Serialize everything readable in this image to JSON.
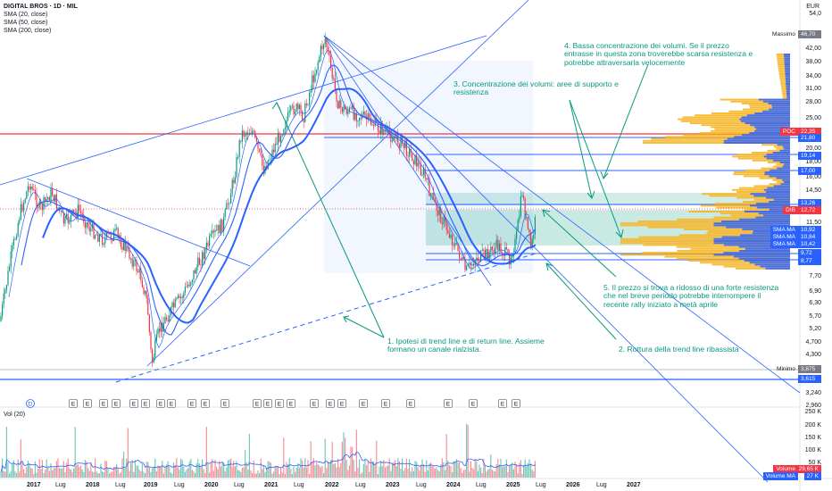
{
  "header": {
    "symbol_title": "DIGITAL BROS · 1D · MIL",
    "currency": "EUR",
    "indicators": [
      "SMA (20, close)",
      "SMA (50, close)",
      "SMA (200, close)"
    ]
  },
  "price_axis": {
    "labels": [
      "54,0",
      "46,70",
      "42,00",
      "38,00",
      "34,00",
      "31,00",
      "28,00",
      "25,00",
      "22,35",
      "21,80",
      "20,00",
      "19,14",
      "18,00",
      "17,00",
      "16,00",
      "14,50",
      "13,26",
      "12,72",
      "11,50",
      "10,92",
      "10,84",
      "10,42",
      "9,72",
      "8,77",
      "8,50",
      "7,70",
      "6,90",
      "6,30",
      "5,70",
      "5,20",
      "4,700",
      "4,300",
      "3,875",
      "3,615",
      "3,240",
      "2,960"
    ]
  },
  "price_tags": [
    {
      "label": "Massimo",
      "value": "46,70",
      "color": "#787b86"
    },
    {
      "label": "POC",
      "value": "22,35",
      "color": "#f23645"
    },
    {
      "label": "",
      "value": "21,80",
      "color": "#2962ff"
    },
    {
      "label": "",
      "value": "19,14",
      "color": "#2962ff"
    },
    {
      "label": "",
      "value": "17,00",
      "color": "#2962ff"
    },
    {
      "label": "",
      "value": "13,26",
      "color": "#2962ff"
    },
    {
      "label": "DIB",
      "value": "12,72",
      "color": "#f23645"
    },
    {
      "label": "SMA MA",
      "value": "10,92",
      "color": "#2962ff"
    },
    {
      "label": "SMA MA",
      "value": "10,84",
      "color": "#2962ff"
    },
    {
      "label": "SMA MA",
      "value": "10,42",
      "color": "#2962ff"
    },
    {
      "label": "",
      "value": "9,72",
      "color": "#2962ff"
    },
    {
      "label": "",
      "value": "8,77",
      "color": "#2962ff"
    },
    {
      "label": "Minimo",
      "value": "3,875",
      "color": "#787b86"
    },
    {
      "label": "",
      "value": "3,615",
      "color": "#2962ff"
    }
  ],
  "volume": {
    "title": "Vol (20)",
    "axis_labels": [
      "250 K",
      "200 K",
      "150 K",
      "100 K",
      "50 K"
    ],
    "tags": [
      {
        "label": "Volume",
        "value": "29,65 K",
        "color": "#f23645"
      },
      {
        "label": "Volume MA",
        "value": "27 K",
        "color": "#2962ff"
      }
    ]
  },
  "time_axis": [
    "2017",
    "Lug",
    "2018",
    "Lug",
    "2019",
    "Lug",
    "2020",
    "Lug",
    "2021",
    "Lug",
    "2022",
    "Lug",
    "2023",
    "Lug",
    "2024",
    "Lug",
    "2025",
    "Lug",
    "2026",
    "Lug",
    "2027"
  ],
  "annotations": {
    "n1": "1. Ipotesi di trend line e di return line. Assieme formano un canale rialzista.",
    "n2": "2. Rottura della trend line ribassista",
    "n3": "3. Concentrazione dei volumi: aree di supporto e resistenza",
    "n4": "4. Bassa concentrazione dei volumi. Se il prezzo entrasse in questa zona troverebbe scarsa resistenza e potrebbe attraversarla velocemente",
    "n5": "5. Il prezzo si trova a ridosso di una forte resistenza che nel breve periodo potrebbe interrompere il recente rally iniziato a metà aprile"
  },
  "events": {
    "dividend_label": "D",
    "earnings_label": "E"
  },
  "colors": {
    "up": "#089981",
    "down": "#f23645",
    "sma": "#2962ff",
    "annotation": "#089981",
    "profile_high": "#f7b626",
    "profile_low": "#2962ff"
  }
}
